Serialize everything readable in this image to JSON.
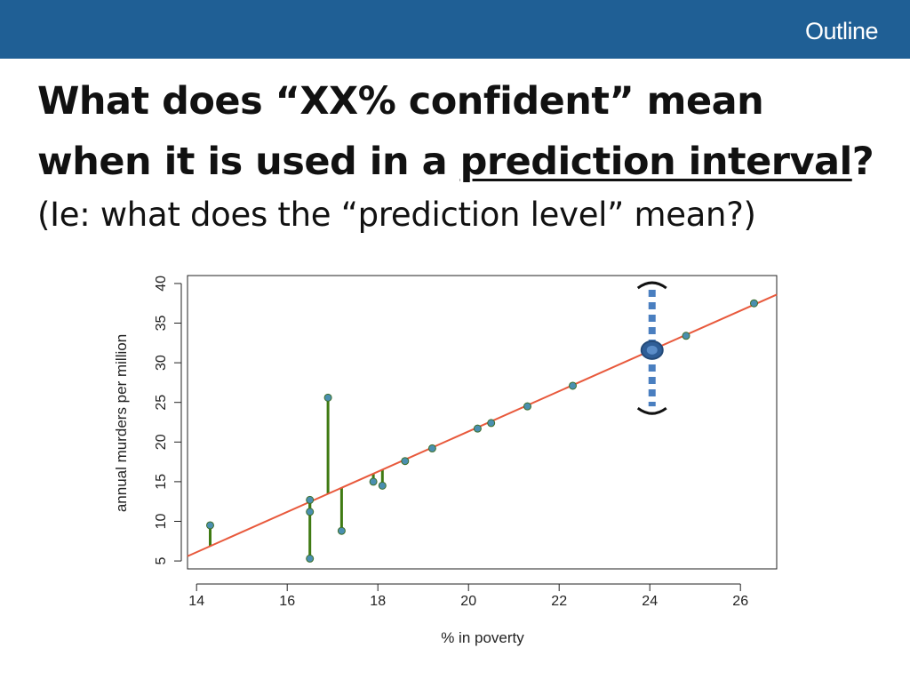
{
  "header": {
    "outline_label": "Outline",
    "bar_color": "#1f5f95"
  },
  "slide": {
    "title_line1": "What does “XX% confident” mean",
    "title_line2_prefix": "when it is used in a ",
    "title_line2_underlined": "prediction interval",
    "title_line2_suffix": "?",
    "subtitle": "(Ie: what does the “prediction level” mean?)"
  },
  "chart_data": {
    "type": "scatter",
    "xlabel": "% in poverty",
    "ylabel": "annual murders per million",
    "xlim": [
      13.8,
      26.8
    ],
    "ylim": [
      4,
      41
    ],
    "x_ticks": [
      14,
      16,
      18,
      20,
      22,
      24,
      26
    ],
    "y_ticks": [
      5,
      10,
      15,
      20,
      25,
      30,
      35,
      40
    ],
    "grid": false,
    "points": [
      {
        "x": 14.3,
        "y": 9.5
      },
      {
        "x": 16.5,
        "y": 12.7
      },
      {
        "x": 16.5,
        "y": 11.2
      },
      {
        "x": 16.5,
        "y": 5.3
      },
      {
        "x": 16.9,
        "y": 25.6
      },
      {
        "x": 17.2,
        "y": 8.8
      },
      {
        "x": 17.9,
        "y": 15.0
      },
      {
        "x": 18.1,
        "y": 14.5
      },
      {
        "x": 18.6,
        "y": 17.6
      },
      {
        "x": 19.2,
        "y": 19.2
      },
      {
        "x": 20.2,
        "y": 21.7
      },
      {
        "x": 20.5,
        "y": 22.4
      },
      {
        "x": 21.3,
        "y": 24.5
      },
      {
        "x": 22.3,
        "y": 27.1
      },
      {
        "x": 24.8,
        "y": 33.4
      },
      {
        "x": 26.3,
        "y": 37.5
      }
    ],
    "regression_line": {
      "x": [
        13.8,
        26.8
      ],
      "y": [
        5.6,
        38.6
      ]
    },
    "prediction": {
      "x": 24.05,
      "y": 31.6,
      "lower": 24.5,
      "upper": 39.2
    },
    "colors": {
      "line": "#e8593c",
      "point": "#4a8fb0",
      "residual": "#3f7a12",
      "interval": "#4a7fc0",
      "prediction_point": "#2f5e97"
    }
  }
}
